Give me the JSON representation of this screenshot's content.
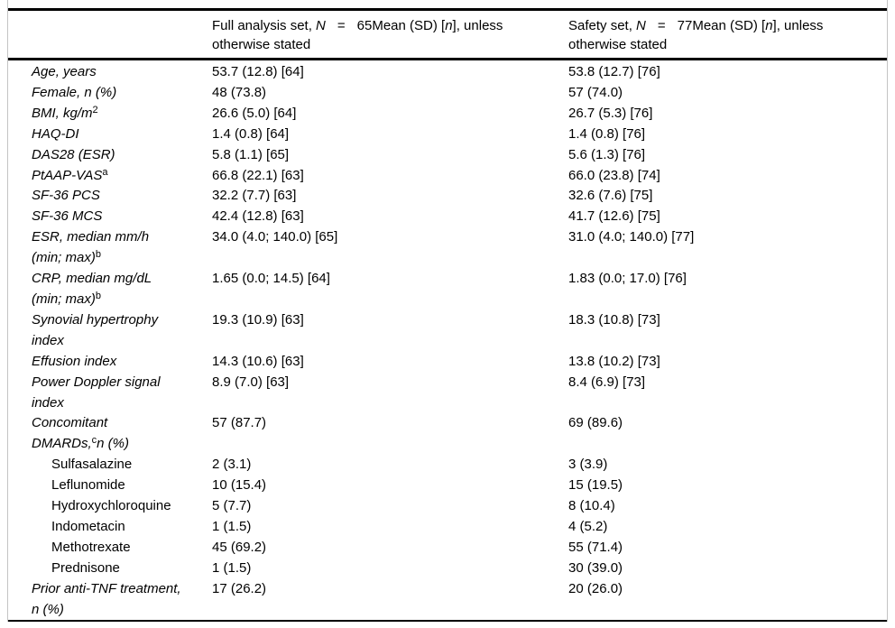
{
  "colors": {
    "rule": "#000000",
    "side_border": "#c4c4c4",
    "background": "#ffffff",
    "text": "#000000"
  },
  "table": {
    "header": {
      "col2": {
        "pre": "Full analysis set, ",
        "n_symbol": "N",
        "eq": "=",
        "count": "65",
        "mean_pre": "Mean (SD) [",
        "n_small": "n",
        "mean_post": "], unless otherwise stated"
      },
      "col3": {
        "pre": "Safety set, ",
        "n_symbol": "N",
        "eq": "=",
        "count": "77",
        "mean_pre": "Mean (SD) [",
        "n_small": "n",
        "mean_post": "], unless otherwise stated"
      }
    },
    "rows": [
      {
        "pre": "Age, years",
        "sup": "",
        "post": "",
        "style": "main",
        "fas": "53.7 (12.8) [64]",
        "safety": "53.8 (12.7) [76]"
      },
      {
        "pre": "Female, n (%)",
        "sup": "",
        "post": "",
        "style": "main",
        "fas": "48 (73.8)",
        "safety": "57 (74.0)"
      },
      {
        "pre": "BMI, kg/m",
        "sup": "2",
        "post": "",
        "style": "main",
        "fas": "26.6 (5.0) [64]",
        "safety": "26.7 (5.3) [76]"
      },
      {
        "pre": "HAQ-DI",
        "sup": "",
        "post": "",
        "style": "main",
        "fas": "1.4 (0.8) [64]",
        "safety": "1.4 (0.8) [76]"
      },
      {
        "pre": "DAS28 (ESR)",
        "sup": "",
        "post": "",
        "style": "main",
        "fas": "5.8 (1.1) [65]",
        "safety": "5.6 (1.3) [76]"
      },
      {
        "pre": "PtAAP-VAS",
        "sup": "a",
        "post": "",
        "style": "main",
        "fas": "66.8 (22.1) [63]",
        "safety": "66.0 (23.8) [74]"
      },
      {
        "pre": "SF-36 PCS",
        "sup": "",
        "post": "",
        "style": "main",
        "fas": "32.2 (7.7) [63]",
        "safety": "32.6 (7.6) [75]"
      },
      {
        "pre": "SF-36 MCS",
        "sup": "",
        "post": "",
        "style": "main",
        "fas": "42.4 (12.8) [63]",
        "safety": "41.7 (12.6) [75]"
      },
      {
        "pre": "ESR, median mm/h\n(min; max)",
        "sup": "b",
        "post": "",
        "style": "main",
        "fas": "34.0 (4.0; 140.0) [65]",
        "safety": "31.0 (4.0; 140.0) [77]"
      },
      {
        "pre": "CRP, median mg/dL\n(min; max)",
        "sup": "b",
        "post": "",
        "style": "main",
        "fas": "1.65 (0.0; 14.5) [64]",
        "safety": "1.83 (0.0; 17.0) [76]"
      },
      {
        "pre": "Synovial hypertrophy\nindex",
        "sup": "",
        "post": "",
        "style": "main",
        "fas": "19.3 (10.9) [63]",
        "safety": "18.3 (10.8) [73]"
      },
      {
        "pre": "Effusion index",
        "sup": "",
        "post": "",
        "style": "main",
        "fas": "14.3 (10.6) [63]",
        "safety": "13.8 (10.2) [73]"
      },
      {
        "pre": "Power Doppler signal\nindex",
        "sup": "",
        "post": "",
        "style": "main",
        "fas": "8.9 (7.0) [63]",
        "safety": "8.4 (6.9) [73]"
      },
      {
        "pre": "Concomitant\nDMARDs,",
        "sup": "c",
        "post": "n (%)",
        "style": "main",
        "fas": "57 (87.7)",
        "safety": "69 (89.6)"
      },
      {
        "pre": "Sulfasalazine",
        "sup": "",
        "post": "",
        "style": "sub",
        "fas": "2 (3.1)",
        "safety": "3 (3.9)"
      },
      {
        "pre": "Leflunomide",
        "sup": "",
        "post": "",
        "style": "sub",
        "fas": "10 (15.4)",
        "safety": "15 (19.5)"
      },
      {
        "pre": "Hydroxychloroquine",
        "sup": "",
        "post": "",
        "style": "sub",
        "fas": "5 (7.7)",
        "safety": "8 (10.4)"
      },
      {
        "pre": "Indometacin",
        "sup": "",
        "post": "",
        "style": "sub",
        "fas": "1 (1.5)",
        "safety": "4 (5.2)"
      },
      {
        "pre": "Methotrexate",
        "sup": "",
        "post": "",
        "style": "sub",
        "fas": "45 (69.2)",
        "safety": "55 (71.4)"
      },
      {
        "pre": "Prednisone",
        "sup": "",
        "post": "",
        "style": "sub",
        "fas": "1 (1.5)",
        "safety": "30 (39.0)"
      },
      {
        "pre": "Prior anti-TNF treatment,\nn (%)",
        "sup": "",
        "post": "",
        "style": "main",
        "fas": "17 (26.2)",
        "safety": "20 (26.0)"
      }
    ]
  }
}
